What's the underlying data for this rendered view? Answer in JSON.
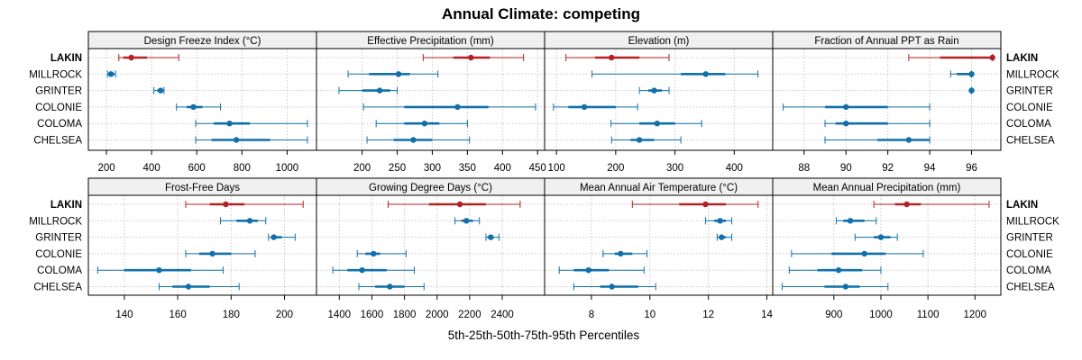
{
  "chart_data": {
    "type": "dot-range",
    "title": "Annual Climate: competing",
    "xlabel": "5th-25th-50th-75th-95th Percentiles",
    "rows": [
      "LAKIN",
      "MILLROCK",
      "GRINTER",
      "COLONIE",
      "COLOMA",
      "CHELSEA"
    ],
    "highlight_row": "LAKIN",
    "colors": {
      "highlight": "#b22222",
      "other": "#1170aa",
      "grid": "#c8c8c8",
      "strip_bg": "#f0f0f0",
      "frame": "#000000"
    },
    "panels": [
      {
        "name": "Design Freeze Index (°C)",
        "xlim": [
          120,
          1130
        ],
        "ticks": [
          200,
          400,
          600,
          800,
          1000
        ],
        "data": [
          {
            "site": "LAKIN",
            "p5": 255,
            "p25": 275,
            "p50": 310,
            "p75": 380,
            "p95": 520
          },
          {
            "site": "MILLROCK",
            "p5": 205,
            "p25": 210,
            "p50": 220,
            "p75": 235,
            "p95": 240
          },
          {
            "site": "GRINTER",
            "p5": 410,
            "p25": 425,
            "p50": 440,
            "p75": 450,
            "p95": 455
          },
          {
            "site": "COLONIE",
            "p5": 510,
            "p25": 555,
            "p50": 585,
            "p75": 625,
            "p95": 705
          },
          {
            "site": "COLOMA",
            "p5": 595,
            "p25": 675,
            "p50": 745,
            "p75": 835,
            "p95": 1090
          },
          {
            "site": "CHELSEA",
            "p5": 595,
            "p25": 665,
            "p50": 775,
            "p75": 925,
            "p95": 1090
          }
        ]
      },
      {
        "name": "Effective Precipitation (mm)",
        "xlim": [
          135,
          460
        ],
        "ticks": [
          200,
          250,
          300,
          350,
          400,
          450
        ],
        "data": [
          {
            "site": "LAKIN",
            "p5": 287,
            "p25": 330,
            "p50": 355,
            "p75": 382,
            "p95": 430
          },
          {
            "site": "MILLROCK",
            "p5": 180,
            "p25": 210,
            "p50": 252,
            "p75": 268,
            "p95": 308
          },
          {
            "site": "GRINTER",
            "p5": 167,
            "p25": 200,
            "p50": 225,
            "p75": 240,
            "p95": 250
          },
          {
            "site": "COLONIE",
            "p5": 202,
            "p25": 260,
            "p50": 336,
            "p75": 380,
            "p95": 447
          },
          {
            "site": "COLOMA",
            "p5": 220,
            "p25": 260,
            "p50": 289,
            "p75": 310,
            "p95": 350
          },
          {
            "site": "CHELSEA",
            "p5": 207,
            "p25": 245,
            "p50": 273,
            "p75": 300,
            "p95": 353
          }
        ]
      },
      {
        "name": "Elevation (m)",
        "xlim": [
          80,
          465
        ],
        "ticks": [
          100,
          200,
          300,
          400
        ],
        "data": [
          {
            "site": "LAKIN",
            "p5": 116,
            "p25": 165,
            "p50": 193,
            "p75": 240,
            "p95": 290
          },
          {
            "site": "MILLROCK",
            "p5": 160,
            "p25": 310,
            "p50": 352,
            "p75": 385,
            "p95": 440
          },
          {
            "site": "GRINTER",
            "p5": 240,
            "p25": 255,
            "p50": 265,
            "p75": 278,
            "p95": 290
          },
          {
            "site": "COLONIE",
            "p5": 95,
            "p25": 120,
            "p50": 147,
            "p75": 200,
            "p95": 237
          },
          {
            "site": "COLOMA",
            "p5": 192,
            "p25": 240,
            "p50": 270,
            "p75": 300,
            "p95": 345
          },
          {
            "site": "CHELSEA",
            "p5": 193,
            "p25": 225,
            "p50": 240,
            "p75": 265,
            "p95": 310
          }
        ]
      },
      {
        "name": "Fraction of Annual PPT as Rain",
        "xlim": [
          86.5,
          97.4
        ],
        "ticks": [
          88,
          90,
          92,
          94,
          96
        ],
        "data": [
          {
            "site": "LAKIN",
            "p5": 93.0,
            "p25": 94.5,
            "p50": 97.0,
            "p75": 97.0,
            "p95": 97.0
          },
          {
            "site": "MILLROCK",
            "p5": 95.0,
            "p25": 95.3,
            "p50": 96.0,
            "p75": 96.0,
            "p95": 96.0
          },
          {
            "site": "GRINTER",
            "p5": 96.0,
            "p25": 96.0,
            "p50": 96.0,
            "p75": 96.0,
            "p95": 96.0
          },
          {
            "site": "COLONIE",
            "p5": 87.0,
            "p25": 89.0,
            "p50": 90.0,
            "p75": 92.0,
            "p95": 94.0
          },
          {
            "site": "COLOMA",
            "p5": 89.0,
            "p25": 89.5,
            "p50": 90.0,
            "p75": 92.0,
            "p95": 94.0
          },
          {
            "site": "CHELSEA",
            "p5": 89.0,
            "p25": 91.5,
            "p50": 93.0,
            "p75": 94.0,
            "p95": 94.0
          }
        ]
      },
      {
        "name": "Frost-Free Days",
        "xlim": [
          126.5,
          212
        ],
        "ticks": [
          140,
          160,
          180,
          200
        ],
        "data": [
          {
            "site": "LAKIN",
            "p5": 163,
            "p25": 172,
            "p50": 178,
            "p75": 185,
            "p95": 207
          },
          {
            "site": "MILLROCK",
            "p5": 176,
            "p25": 182,
            "p50": 187,
            "p75": 190,
            "p95": 193
          },
          {
            "site": "GRINTER",
            "p5": 194,
            "p25": 195,
            "p50": 196,
            "p75": 199,
            "p95": 204
          },
          {
            "site": "COLONIE",
            "p5": 163,
            "p25": 168,
            "p50": 173,
            "p75": 180,
            "p95": 189
          },
          {
            "site": "COLOMA",
            "p5": 130,
            "p25": 140,
            "p50": 153,
            "p75": 165,
            "p95": 177
          },
          {
            "site": "CHELSEA",
            "p5": 153,
            "p25": 158,
            "p50": 164,
            "p75": 172,
            "p95": 183
          }
        ]
      },
      {
        "name": "Growing Degree Days (°C)",
        "xlim": [
          1260,
          2660
        ],
        "ticks": [
          1400,
          1600,
          1800,
          2000,
          2200,
          2400
        ],
        "data": [
          {
            "site": "LAKIN",
            "p5": 1700,
            "p25": 1950,
            "p50": 2140,
            "p75": 2300,
            "p95": 2510
          },
          {
            "site": "MILLROCK",
            "p5": 2110,
            "p25": 2150,
            "p50": 2180,
            "p75": 2220,
            "p95": 2260
          },
          {
            "site": "GRINTER",
            "p5": 2300,
            "p25": 2310,
            "p50": 2330,
            "p75": 2340,
            "p95": 2380
          },
          {
            "site": "COLONIE",
            "p5": 1510,
            "p25": 1560,
            "p50": 1610,
            "p75": 1650,
            "p95": 1810
          },
          {
            "site": "COLOMA",
            "p5": 1360,
            "p25": 1450,
            "p50": 1540,
            "p75": 1690,
            "p95": 1860
          },
          {
            "site": "CHELSEA",
            "p5": 1520,
            "p25": 1620,
            "p50": 1710,
            "p75": 1800,
            "p95": 1920
          }
        ]
      },
      {
        "name": "Mean Annual Air Temperature (°C)",
        "xlim": [
          6.4,
          14.2
        ],
        "ticks": [
          8,
          10,
          12,
          14
        ],
        "data": [
          {
            "site": "LAKIN",
            "p5": 9.4,
            "p25": 11.0,
            "p50": 11.9,
            "p75": 12.6,
            "p95": 13.7
          },
          {
            "site": "MILLROCK",
            "p5": 11.9,
            "p25": 12.2,
            "p50": 12.4,
            "p75": 12.6,
            "p95": 12.8
          },
          {
            "site": "GRINTER",
            "p5": 12.3,
            "p25": 12.4,
            "p50": 12.45,
            "p75": 12.6,
            "p95": 12.8
          },
          {
            "site": "COLONIE",
            "p5": 8.4,
            "p25": 8.8,
            "p50": 9.0,
            "p75": 9.4,
            "p95": 9.9
          },
          {
            "site": "COLOMA",
            "p5": 6.9,
            "p25": 7.4,
            "p50": 7.9,
            "p75": 8.6,
            "p95": 9.8
          },
          {
            "site": "CHELSEA",
            "p5": 7.4,
            "p25": 8.3,
            "p50": 8.7,
            "p75": 9.6,
            "p95": 10.2
          }
        ]
      },
      {
        "name": "Mean Annual Precipitation (mm)",
        "xlim": [
          770,
          1255
        ],
        "ticks": [
          900,
          1000,
          1100,
          1200
        ],
        "data": [
          {
            "site": "LAKIN",
            "p5": 985,
            "p25": 1030,
            "p50": 1055,
            "p75": 1085,
            "p95": 1230
          },
          {
            "site": "MILLROCK",
            "p5": 905,
            "p25": 920,
            "p50": 935,
            "p75": 965,
            "p95": 990
          },
          {
            "site": "GRINTER",
            "p5": 945,
            "p25": 985,
            "p50": 1000,
            "p75": 1020,
            "p95": 1035
          },
          {
            "site": "COLONIE",
            "p5": 810,
            "p25": 895,
            "p50": 965,
            "p75": 1010,
            "p95": 1090
          },
          {
            "site": "COLOMA",
            "p5": 805,
            "p25": 865,
            "p50": 910,
            "p75": 960,
            "p95": 1000
          },
          {
            "site": "CHELSEA",
            "p5": 790,
            "p25": 880,
            "p50": 925,
            "p75": 955,
            "p95": 1015
          }
        ]
      }
    ]
  }
}
